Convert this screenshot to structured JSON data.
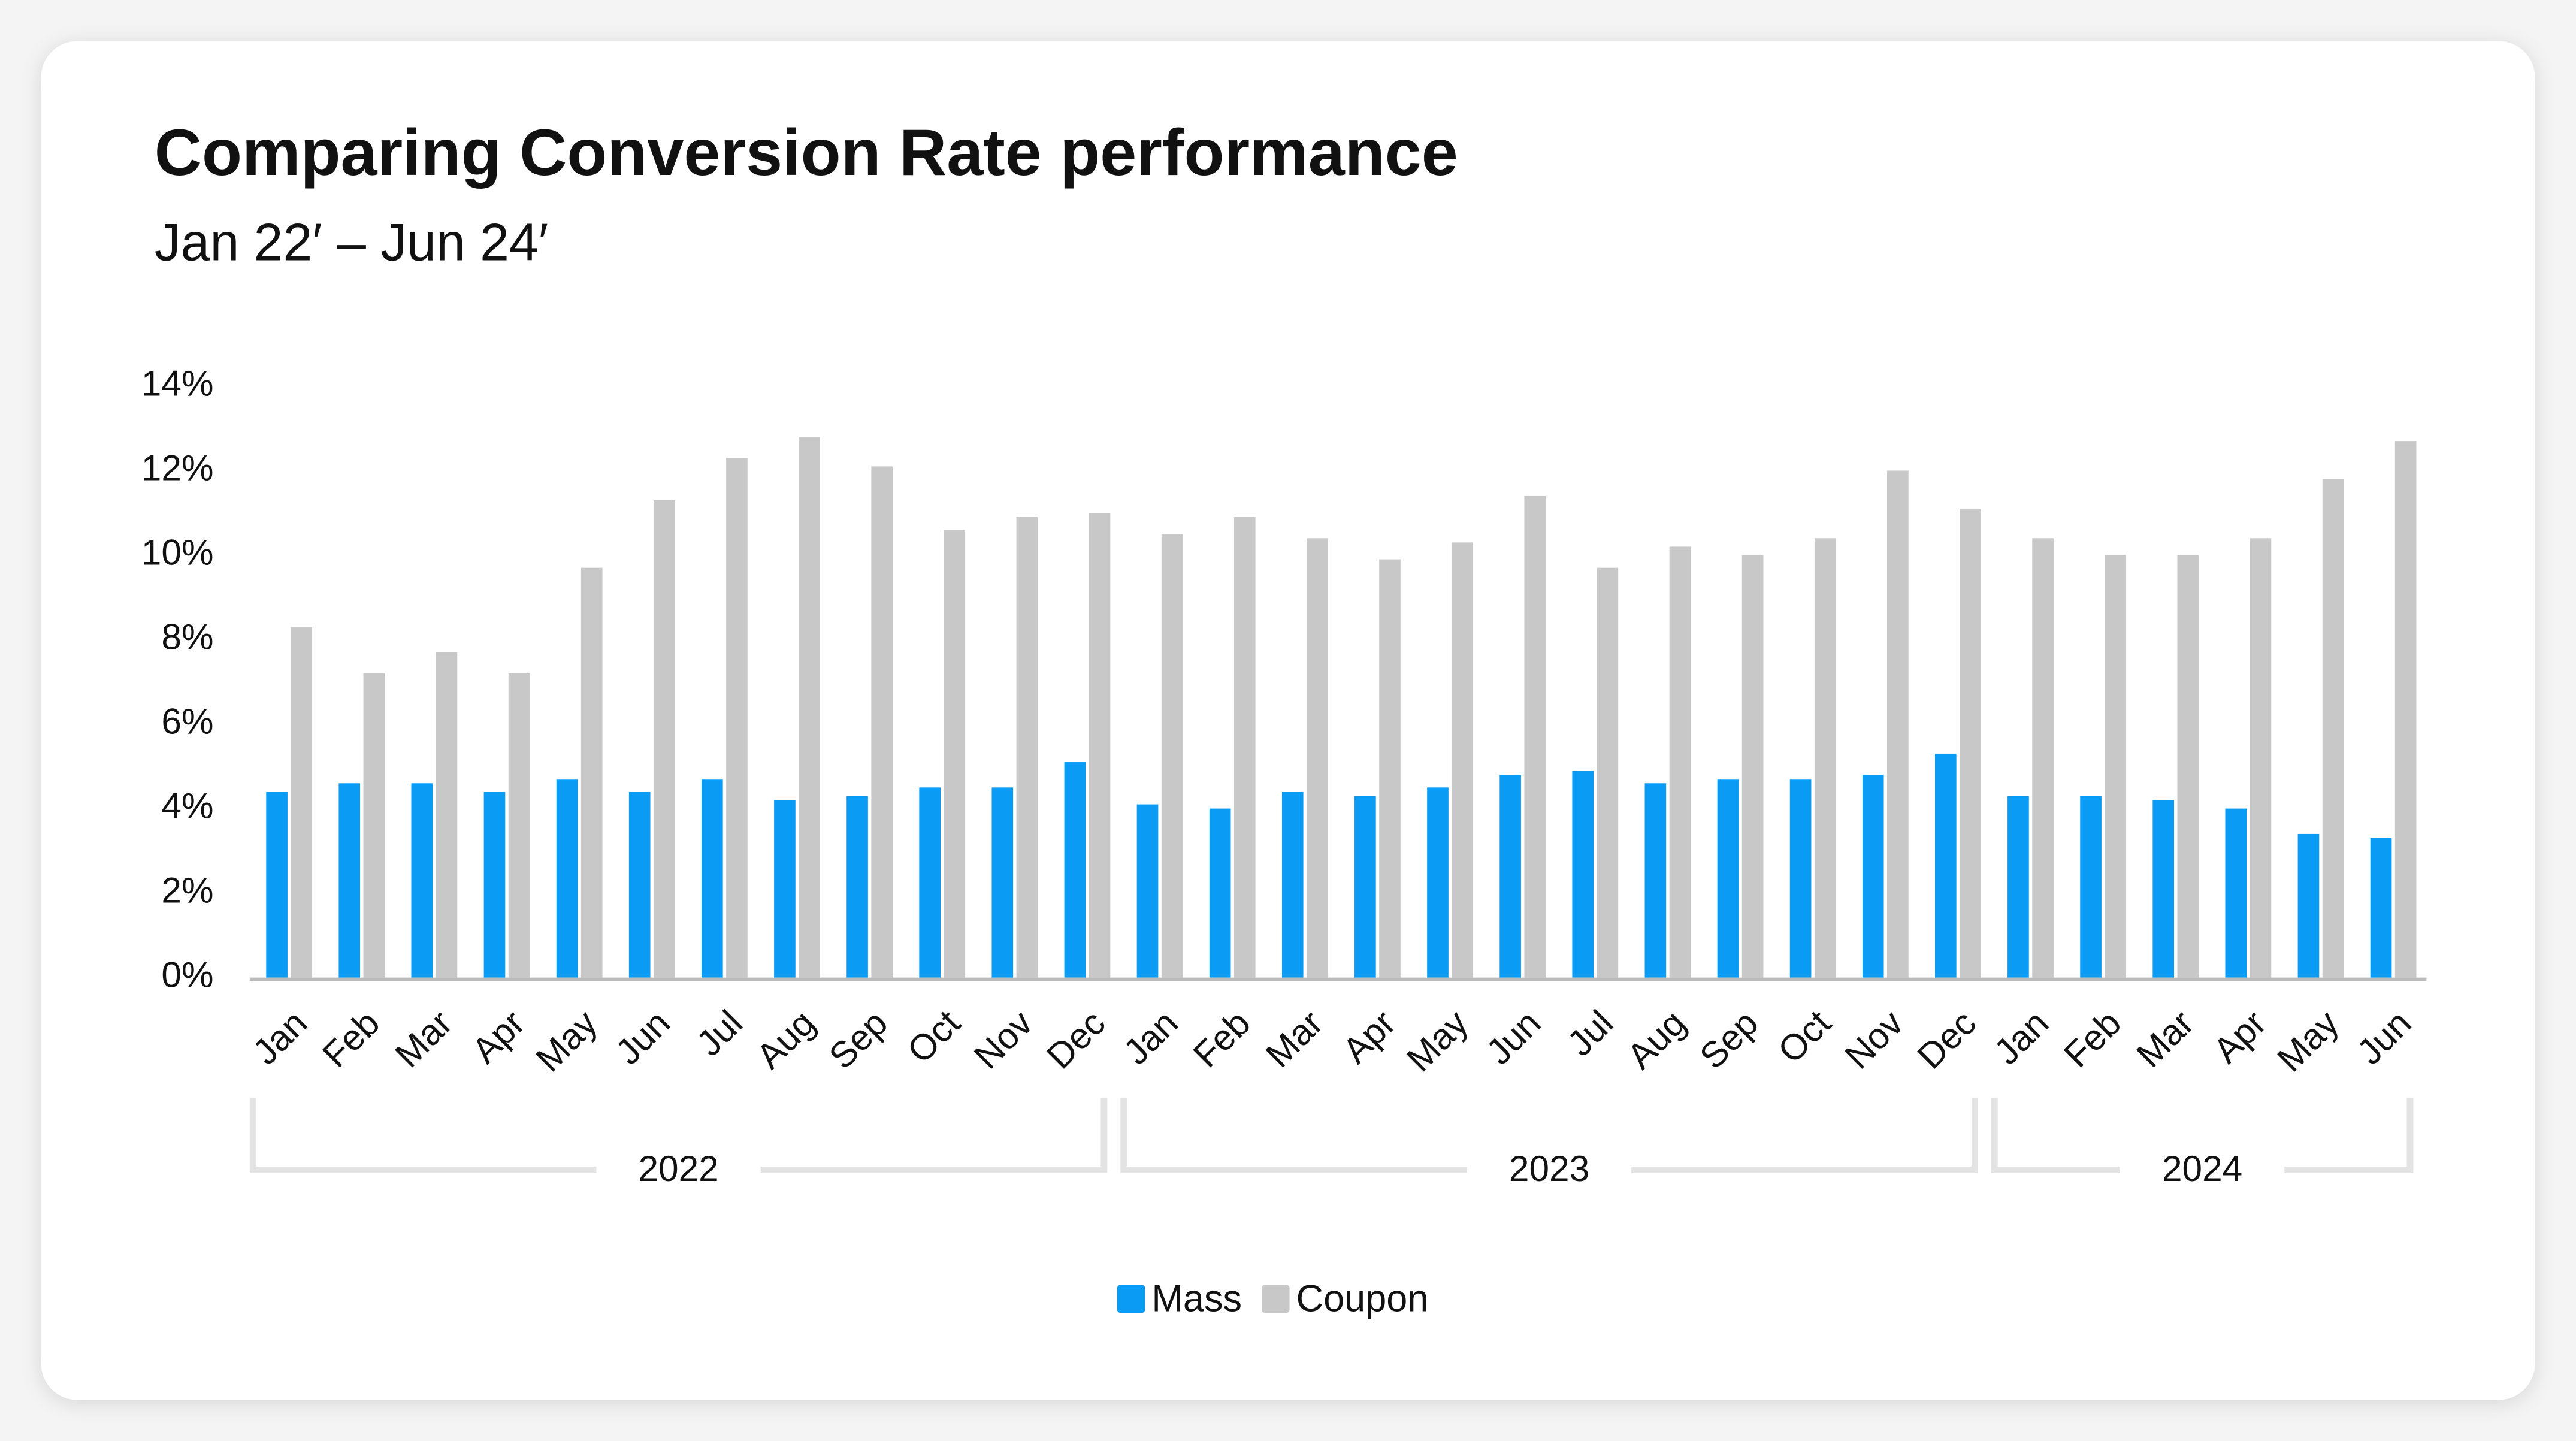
{
  "chart_data": {
    "type": "bar",
    "title": "Comparing Conversion Rate performance",
    "subtitle": "Jan 22′ – Jun 24′",
    "groups": [
      {
        "label": "2022",
        "categories": [
          "Jan",
          "Feb",
          "Mar",
          "Apr",
          "May",
          "Jun",
          "Jul",
          "Aug",
          "Sep",
          "Oct",
          "Nov",
          "Dec"
        ]
      },
      {
        "label": "2023",
        "categories": [
          "Jan",
          "Feb",
          "Mar",
          "Apr",
          "May",
          "Jun",
          "Jul",
          "Aug",
          "Sep",
          "Oct",
          "Nov",
          "Dec"
        ]
      },
      {
        "label": "2024",
        "categories": [
          "Jan",
          "Feb",
          "Mar",
          "Apr",
          "May",
          "Jun"
        ]
      }
    ],
    "series": [
      {
        "name": "Mass",
        "color": "#0a9cf5",
        "values": [
          4.4,
          4.6,
          4.6,
          4.4,
          4.7,
          4.4,
          4.7,
          4.2,
          4.3,
          4.5,
          4.5,
          5.1,
          4.1,
          4.0,
          4.4,
          4.3,
          4.5,
          4.8,
          4.9,
          4.6,
          4.7,
          4.7,
          4.8,
          5.3,
          4.3,
          4.3,
          4.2,
          4.0,
          3.4,
          3.3
        ]
      },
      {
        "name": "Coupon",
        "color": "#c8c8c8",
        "values": [
          8.3,
          7.2,
          7.7,
          7.2,
          9.7,
          11.3,
          12.3,
          12.8,
          12.1,
          10.6,
          10.9,
          11.0,
          10.5,
          10.9,
          10.4,
          9.9,
          10.3,
          11.4,
          9.7,
          10.2,
          10.0,
          10.4,
          12.0,
          11.1,
          10.4,
          10.0,
          10.0,
          10.4,
          11.8,
          12.7
        ]
      }
    ],
    "ylim": [
      0,
      14
    ],
    "yticks": [
      {
        "value": 0,
        "label": "0%"
      },
      {
        "value": 2,
        "label": "2%"
      },
      {
        "value": 4,
        "label": "4%"
      },
      {
        "value": 6,
        "label": "6%"
      },
      {
        "value": 8,
        "label": "8%"
      },
      {
        "value": 10,
        "label": "10%"
      },
      {
        "value": 12,
        "label": "12%"
      },
      {
        "value": 14,
        "label": "14%"
      }
    ],
    "legend": "bottom"
  }
}
